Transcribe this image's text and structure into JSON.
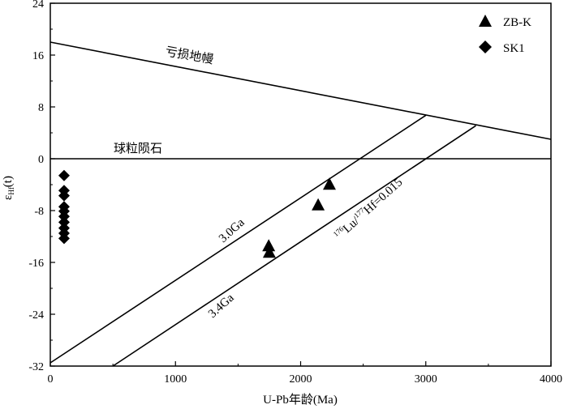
{
  "chart_data": {
    "type": "scatter",
    "xlabel": "U-Pb年龄(Ma)",
    "ylabel": "εHf(t)",
    "ylabel_main": "ε",
    "ylabel_sub": "Hf",
    "ylabel_suffix": "(t)",
    "xlim": [
      0,
      4000
    ],
    "ylim": [
      -32,
      24
    ],
    "x_ticks": [
      0,
      1000,
      2000,
      3000,
      4000
    ],
    "y_ticks": [
      -32,
      -24,
      -16,
      -8,
      0,
      8,
      16,
      24
    ],
    "x_tick_labels": [
      "0",
      "1000",
      "2000",
      "3000",
      "4000"
    ],
    "y_tick_labels": [
      "-32",
      "-24",
      "-16",
      "-8",
      "0",
      "8",
      "16",
      "24"
    ],
    "grid": false,
    "legend_position": "top-right",
    "series": [
      {
        "name": "ZB-K",
        "marker": "triangle",
        "points": [
          [
            1745,
            -13.4
          ],
          [
            1750,
            -14.4
          ],
          [
            2140,
            -7.1
          ],
          [
            2230,
            -3.9
          ]
        ]
      },
      {
        "name": "SK1",
        "marker": "diamond",
        "points": [
          [
            110,
            -2.6
          ],
          [
            110,
            -4.9
          ],
          [
            110,
            -5.7
          ],
          [
            110,
            -7.4
          ],
          [
            110,
            -8.1
          ],
          [
            110,
            -8.9
          ],
          [
            110,
            -9.8
          ],
          [
            110,
            -10.7
          ],
          [
            110,
            -11.5
          ],
          [
            110,
            -12.3
          ]
        ]
      }
    ],
    "reference_lines": [
      {
        "id": "depleted-mantle",
        "points": [
          [
            0,
            18
          ],
          [
            4000,
            3
          ]
        ]
      },
      {
        "id": "chondrite",
        "points": [
          [
            0,
            0
          ],
          [
            4000,
            0
          ]
        ]
      },
      {
        "id": "line-3-0ga",
        "points": [
          [
            0,
            -31.5
          ],
          [
            3000,
            6.7
          ]
        ]
      },
      {
        "id": "line-3-4ga",
        "points": [
          [
            500,
            -32
          ],
          [
            3400,
            5.1
          ]
        ]
      }
    ],
    "annotations": {
      "depleted_mantle": "亏损地幔",
      "chondrite": "球粒陨石",
      "line_3_0": "3.0Ga",
      "line_3_4": "3.4Ga",
      "lu_hf_sup1": "176",
      "lu_hf_lu": "Lu/",
      "lu_hf_sup2": "177",
      "lu_hf_rest": "Hf=0.015"
    }
  }
}
